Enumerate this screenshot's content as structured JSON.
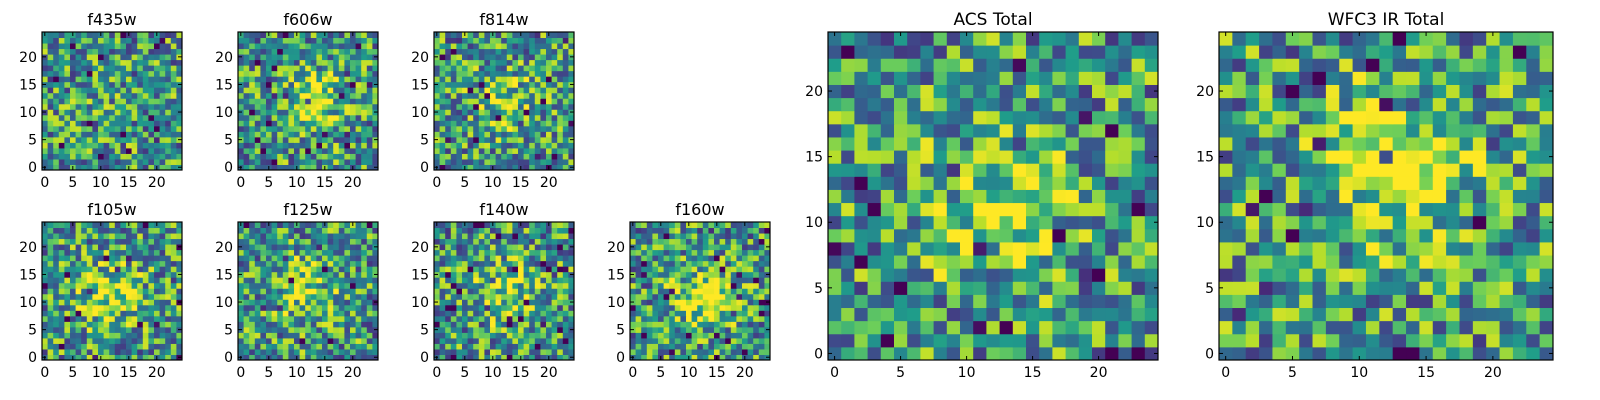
{
  "chart_data": [
    {
      "type": "heatmap",
      "title": "f435w",
      "seed": 11,
      "grid": [
        25,
        25
      ],
      "xlim": [
        0,
        24
      ],
      "ylim": [
        0,
        24
      ],
      "xticks": [
        0,
        5,
        10,
        15,
        20
      ],
      "yticks": [
        0,
        5,
        10,
        15,
        20
      ],
      "center": [
        12,
        10
      ],
      "center_strength": 0.05
    },
    {
      "type": "heatmap",
      "title": "f606w",
      "seed": 23,
      "grid": [
        25,
        25
      ],
      "xlim": [
        0,
        24
      ],
      "ylim": [
        0,
        24
      ],
      "xticks": [
        0,
        5,
        10,
        15,
        20
      ],
      "yticks": [
        0,
        5,
        10,
        15,
        20
      ],
      "center": [
        13,
        12
      ],
      "center_strength": 0.35
    },
    {
      "type": "heatmap",
      "title": "f814w",
      "seed": 37,
      "grid": [
        25,
        25
      ],
      "xlim": [
        0,
        24
      ],
      "ylim": [
        0,
        24
      ],
      "xticks": [
        0,
        5,
        10,
        15,
        20
      ],
      "yticks": [
        0,
        5,
        10,
        15,
        20
      ],
      "center": [
        12,
        12
      ],
      "center_strength": 0.25
    },
    {
      "type": "heatmap",
      "title": "f105w",
      "seed": 41,
      "grid": [
        25,
        25
      ],
      "xlim": [
        0,
        24
      ],
      "ylim": [
        0,
        24
      ],
      "xticks": [
        0,
        5,
        10,
        15,
        20
      ],
      "yticks": [
        0,
        5,
        10,
        15,
        20
      ],
      "center": [
        12,
        11
      ],
      "center_strength": 0.35
    },
    {
      "type": "heatmap",
      "title": "f125w",
      "seed": 53,
      "grid": [
        25,
        25
      ],
      "xlim": [
        0,
        24
      ],
      "ylim": [
        0,
        24
      ],
      "xticks": [
        0,
        5,
        10,
        15,
        20
      ],
      "yticks": [
        0,
        5,
        10,
        15,
        20
      ],
      "center": [
        12,
        12
      ],
      "center_strength": 0.3
    },
    {
      "type": "heatmap",
      "title": "f140w",
      "seed": 67,
      "grid": [
        25,
        25
      ],
      "xlim": [
        0,
        24
      ],
      "ylim": [
        0,
        24
      ],
      "xticks": [
        0,
        5,
        10,
        15,
        20
      ],
      "yticks": [
        0,
        5,
        10,
        15,
        20
      ],
      "center": [
        12,
        12
      ],
      "center_strength": 0.3
    },
    {
      "type": "heatmap",
      "title": "f160w",
      "seed": 71,
      "grid": [
        25,
        25
      ],
      "xlim": [
        0,
        24
      ],
      "ylim": [
        0,
        24
      ],
      "xticks": [
        0,
        5,
        10,
        15,
        20
      ],
      "yticks": [
        0,
        5,
        10,
        15,
        20
      ],
      "center": [
        13,
        11
      ],
      "center_strength": 0.4
    },
    {
      "type": "heatmap",
      "title": "ACS Total",
      "seed": 83,
      "grid": [
        25,
        25
      ],
      "xlim": [
        0,
        24
      ],
      "ylim": [
        0,
        24
      ],
      "xticks": [
        0,
        5,
        10,
        15,
        20
      ],
      "yticks": [
        0,
        5,
        10,
        15,
        20
      ],
      "center": [
        12,
        11
      ],
      "center_strength": 0.3
    },
    {
      "type": "heatmap",
      "title": "WFC3 IR Total",
      "seed": 97,
      "grid": [
        25,
        25
      ],
      "xlim": [
        0,
        24
      ],
      "ylim": [
        0,
        24
      ],
      "xticks": [
        0,
        5,
        10,
        15,
        20
      ],
      "yticks": [
        0,
        5,
        10,
        15,
        20
      ],
      "center": [
        13,
        14
      ],
      "center_strength": 0.45
    }
  ],
  "colormap": [
    "#440154",
    "#482777",
    "#3f4a8a",
    "#31678e",
    "#26838f",
    "#1f9d8a",
    "#6cce5a",
    "#b6de2b",
    "#fee825"
  ]
}
